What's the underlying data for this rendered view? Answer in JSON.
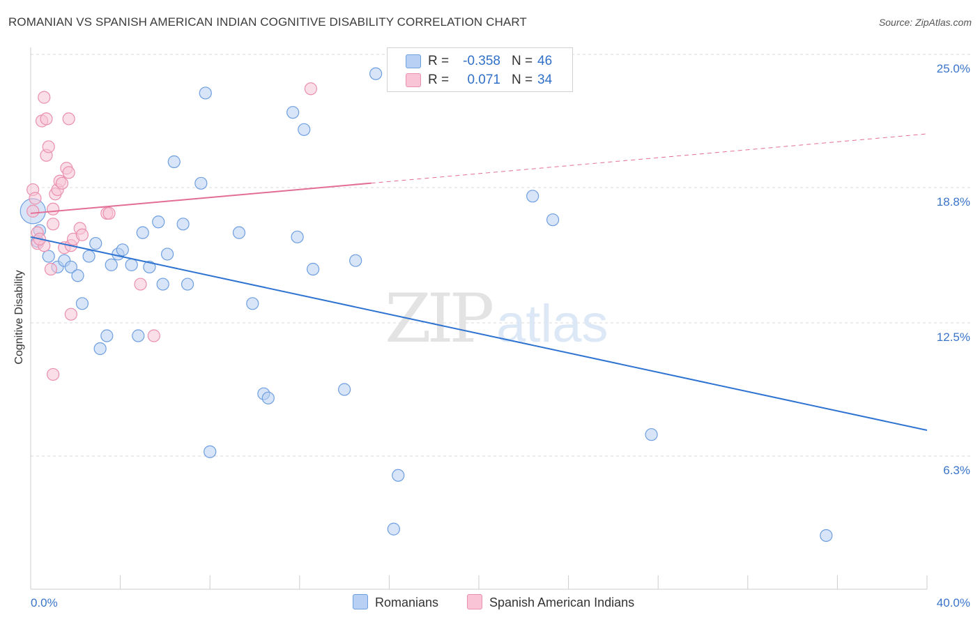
{
  "header": {
    "title": "ROMANIAN VS SPANISH AMERICAN INDIAN COGNITIVE DISABILITY CORRELATION CHART",
    "source": "Source: ZipAtlas.com"
  },
  "watermark": {
    "zip": "ZIP",
    "atlas": "atlas"
  },
  "colors": {
    "blue_fill": "#b8d0f3",
    "blue_stroke": "#6d9ee0",
    "blue_line": "#2e73d1",
    "pink_fill": "#f8c4d6",
    "pink_stroke": "#ea8fae",
    "pink_line": "#e26d95",
    "axis_label": "#3a74c9",
    "grid": "#d9d9d9"
  },
  "legend_top": {
    "rows": [
      {
        "r_label": "R =",
        "r_value": "-0.358",
        "n_label": "N =",
        "n_value": "46"
      },
      {
        "r_label": "R =",
        "r_value": "0.071",
        "n_label": "N =",
        "n_value": "34"
      }
    ]
  },
  "legend_bottom": {
    "items": [
      "Romanians",
      "Spanish American Indians"
    ]
  },
  "chart_data": {
    "type": "scatter",
    "title": "ROMANIAN VS SPANISH AMERICAN INDIAN COGNITIVE DISABILITY CORRELATION CHART",
    "xlabel": "",
    "ylabel": "Cognitive Disability",
    "xlim": [
      0,
      40
    ],
    "ylim": [
      0,
      26
    ],
    "x_tick_labels": [
      "0.0%",
      "40.0%"
    ],
    "y_ticks": [
      6.3,
      12.5,
      18.8,
      25.0
    ],
    "y_tick_labels": [
      "6.3%",
      "12.5%",
      "18.8%",
      "25.0%"
    ],
    "grid": true,
    "legend_position": "top-center",
    "series": [
      {
        "name": "Romanians",
        "r": -0.358,
        "n": 46,
        "trend": {
          "x": [
            0,
            40
          ],
          "y": [
            16.5,
            7.5
          ],
          "dashed_from": null
        },
        "points": [
          [
            0.1,
            17.7
          ],
          [
            0.4,
            16.8
          ],
          [
            0.8,
            15.6
          ],
          [
            1.2,
            15.1
          ],
          [
            1.5,
            15.4
          ],
          [
            1.8,
            15.1
          ],
          [
            2.1,
            14.7
          ],
          [
            2.3,
            13.4
          ],
          [
            2.6,
            15.6
          ],
          [
            2.9,
            16.2
          ],
          [
            3.1,
            11.3
          ],
          [
            3.4,
            11.9
          ],
          [
            3.6,
            15.2
          ],
          [
            3.9,
            15.7
          ],
          [
            4.1,
            15.9
          ],
          [
            4.5,
            15.2
          ],
          [
            4.8,
            11.9
          ],
          [
            5.0,
            16.7
          ],
          [
            5.3,
            15.1
          ],
          [
            5.7,
            17.2
          ],
          [
            5.9,
            14.3
          ],
          [
            6.1,
            15.7
          ],
          [
            6.4,
            20.0
          ],
          [
            6.8,
            17.1
          ],
          [
            7.0,
            14.3
          ],
          [
            7.6,
            19.0
          ],
          [
            7.8,
            23.2
          ],
          [
            8.0,
            6.5
          ],
          [
            9.3,
            16.7
          ],
          [
            9.9,
            13.4
          ],
          [
            10.4,
            9.2
          ],
          [
            10.6,
            9.0
          ],
          [
            11.7,
            22.3
          ],
          [
            11.9,
            16.5
          ],
          [
            12.2,
            21.5
          ],
          [
            12.6,
            15.0
          ],
          [
            14.0,
            9.4
          ],
          [
            14.5,
            15.4
          ],
          [
            15.4,
            24.1
          ],
          [
            16.2,
            2.9
          ],
          [
            16.4,
            5.4
          ],
          [
            22.4,
            18.4
          ],
          [
            23.3,
            17.3
          ],
          [
            27.7,
            7.3
          ],
          [
            35.5,
            2.6
          ],
          [
            0.3,
            16.3
          ]
        ]
      },
      {
        "name": "Spanish American Indians",
        "r": 0.071,
        "n": 34,
        "trend": {
          "x": [
            0,
            40
          ],
          "y": [
            17.6,
            21.3
          ],
          "dashed_from": 15.2
        },
        "points": [
          [
            0.1,
            18.7
          ],
          [
            0.1,
            17.7
          ],
          [
            0.2,
            18.3
          ],
          [
            0.3,
            16.7
          ],
          [
            0.3,
            16.2
          ],
          [
            0.5,
            21.9
          ],
          [
            0.6,
            23.0
          ],
          [
            0.6,
            16.1
          ],
          [
            0.7,
            22.0
          ],
          [
            0.7,
            20.3
          ],
          [
            0.8,
            20.7
          ],
          [
            0.9,
            15.0
          ],
          [
            1.0,
            17.8
          ],
          [
            1.0,
            17.1
          ],
          [
            1.1,
            18.5
          ],
          [
            1.2,
            18.7
          ],
          [
            1.3,
            19.1
          ],
          [
            1.4,
            19.0
          ],
          [
            1.5,
            16.0
          ],
          [
            1.6,
            19.7
          ],
          [
            1.7,
            19.5
          ],
          [
            1.7,
            22.0
          ],
          [
            1.8,
            12.9
          ],
          [
            1.8,
            16.1
          ],
          [
            1.9,
            16.4
          ],
          [
            2.2,
            16.9
          ],
          [
            2.3,
            16.6
          ],
          [
            1.0,
            10.1
          ],
          [
            3.4,
            17.6
          ],
          [
            3.5,
            17.6
          ],
          [
            4.9,
            14.3
          ],
          [
            5.5,
            11.9
          ],
          [
            12.5,
            23.4
          ],
          [
            0.4,
            16.4
          ]
        ]
      }
    ]
  }
}
